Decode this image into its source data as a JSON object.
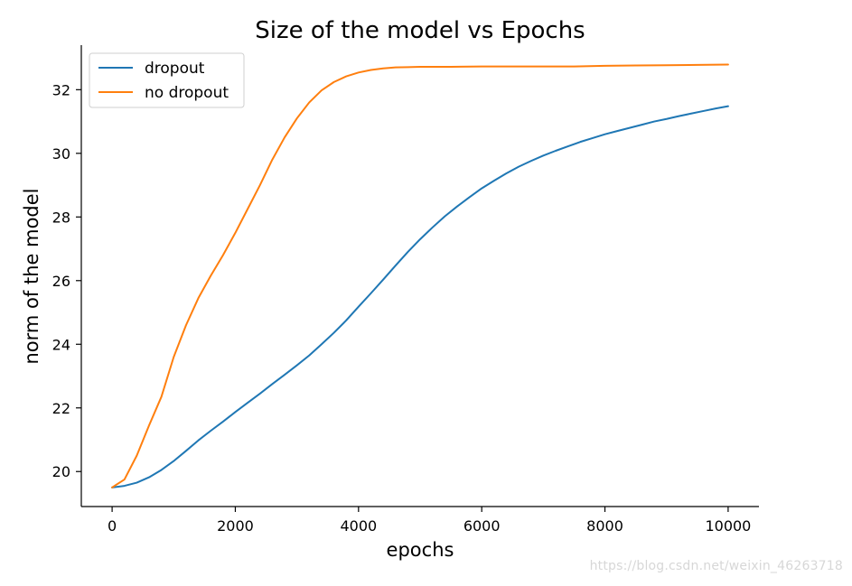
{
  "chart_data": {
    "type": "line",
    "title": "Size of the model vs Epochs",
    "xlabel": "epochs",
    "ylabel": "norm of the model",
    "xlim": [
      -500,
      10500
    ],
    "ylim": [
      18.9,
      33.4
    ],
    "xticks": [
      0,
      2000,
      4000,
      6000,
      8000,
      10000
    ],
    "yticks": [
      20,
      22,
      24,
      26,
      28,
      30,
      32
    ],
    "grid": false,
    "legend_position": "upper-left",
    "series": [
      {
        "name": "dropout",
        "color": "#1f77b4",
        "x": [
          0,
          200,
          400,
          600,
          800,
          1000,
          1200,
          1400,
          1600,
          1800,
          2000,
          2200,
          2400,
          2600,
          2800,
          3000,
          3200,
          3400,
          3600,
          3800,
          4000,
          4200,
          4400,
          4600,
          4800,
          5000,
          5200,
          5400,
          5600,
          5800,
          6000,
          6200,
          6400,
          6600,
          6800,
          7000,
          7200,
          7400,
          7600,
          7800,
          8000,
          8200,
          8400,
          8600,
          8800,
          9000,
          9200,
          9400,
          9600,
          9800,
          10000
        ],
        "y": [
          19.5,
          19.55,
          19.65,
          19.82,
          20.05,
          20.33,
          20.65,
          20.98,
          21.28,
          21.57,
          21.87,
          22.16,
          22.45,
          22.75,
          23.04,
          23.34,
          23.65,
          24.0,
          24.36,
          24.75,
          25.18,
          25.6,
          26.03,
          26.47,
          26.9,
          27.3,
          27.67,
          28.02,
          28.33,
          28.62,
          28.9,
          29.14,
          29.37,
          29.58,
          29.76,
          29.93,
          30.08,
          30.22,
          30.36,
          30.48,
          30.6,
          30.7,
          30.8,
          30.9,
          31.0,
          31.08,
          31.17,
          31.25,
          31.33,
          31.41,
          31.48
        ]
      },
      {
        "name": "no dropout",
        "color": "#ff7f0e",
        "x": [
          0,
          200,
          400,
          600,
          800,
          1000,
          1200,
          1400,
          1600,
          1800,
          2000,
          2200,
          2400,
          2600,
          2800,
          3000,
          3200,
          3400,
          3600,
          3800,
          4000,
          4200,
          4400,
          4600,
          4800,
          5000,
          5500,
          6000,
          6500,
          7000,
          7500,
          8000,
          8500,
          9000,
          9500,
          10000
        ],
        "y": [
          19.5,
          19.75,
          20.5,
          21.45,
          22.35,
          23.6,
          24.6,
          25.45,
          26.15,
          26.8,
          27.5,
          28.25,
          29.0,
          29.8,
          30.5,
          31.1,
          31.6,
          31.98,
          32.24,
          32.42,
          32.54,
          32.62,
          32.67,
          32.7,
          32.71,
          32.72,
          32.72,
          32.73,
          32.73,
          32.73,
          32.73,
          32.75,
          32.76,
          32.77,
          32.78,
          32.79
        ]
      }
    ]
  },
  "watermark": "https://blog.csdn.net/weixin_46263718"
}
